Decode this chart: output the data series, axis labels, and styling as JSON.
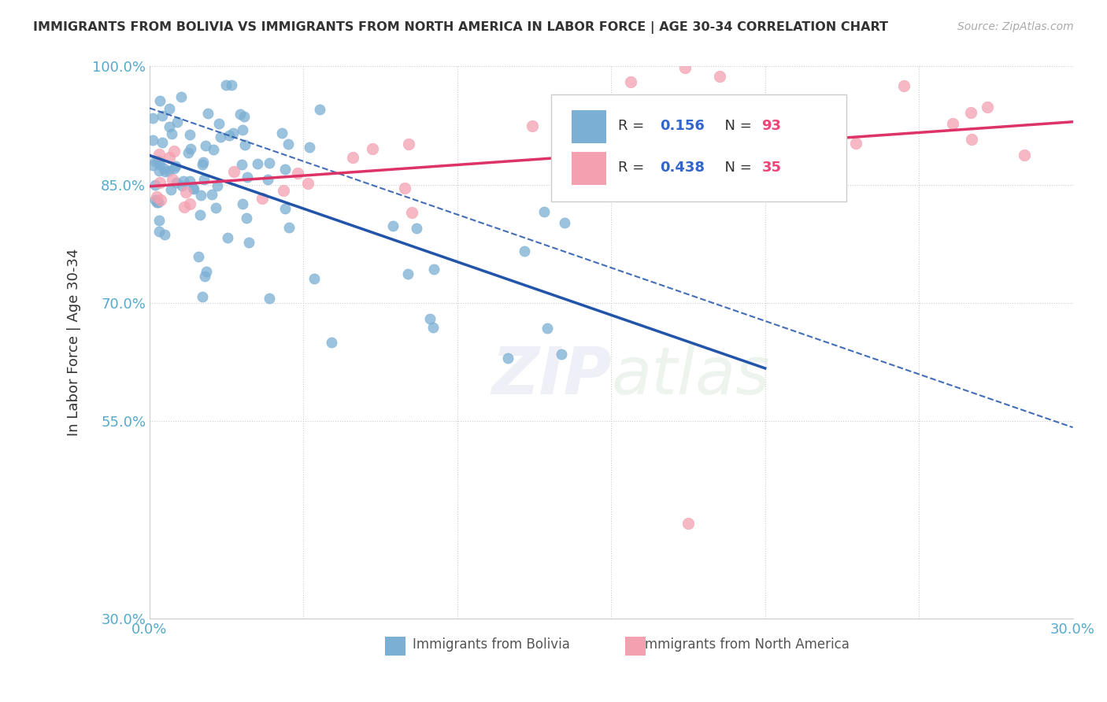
{
  "title": "IMMIGRANTS FROM BOLIVIA VS IMMIGRANTS FROM NORTH AMERICA IN LABOR FORCE | AGE 30-34 CORRELATION CHART",
  "source": "Source: ZipAtlas.com",
  "ylabel": "In Labor Force | Age 30-34",
  "xlim": [
    0.0,
    0.3
  ],
  "ylim": [
    0.3,
    1.0
  ],
  "bolivia_R": 0.156,
  "bolivia_N": 93,
  "northamerica_R": 0.438,
  "northamerica_N": 35,
  "bolivia_color": "#7BAFD4",
  "northamerica_color": "#F4A0B0",
  "bolivia_line_color": "#2255AA",
  "northamerica_line_color": "#DD3366",
  "legend_label_bolivia": "Immigrants from Bolivia",
  "legend_label_northamerica": "Immigrants from North America",
  "watermark": "ZIPatlas",
  "background_color": "#FFFFFF",
  "grid_color": "#CCCCCC",
  "title_color": "#333333",
  "axis_label_color": "#333333",
  "tick_label_color": "#55AACC",
  "R_color": "#3366CC",
  "N_color": "#EE4477"
}
